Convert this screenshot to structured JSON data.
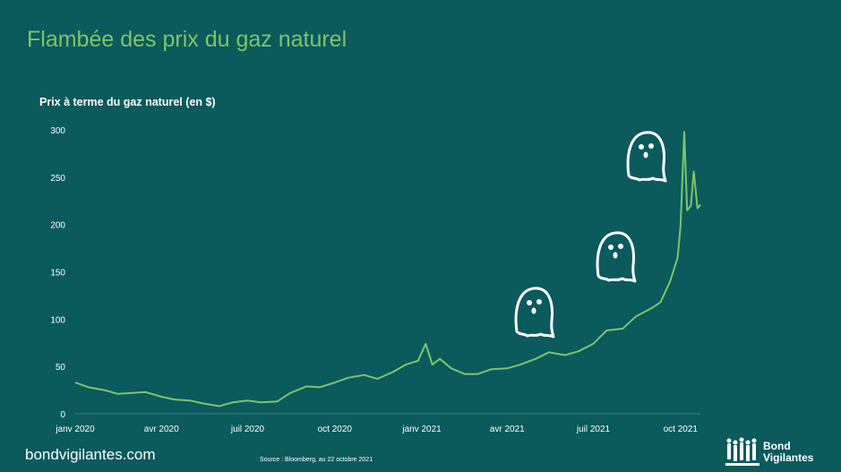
{
  "title": "Flambée des prix du gaz naturel",
  "footer": {
    "site": "bondvigilantes.com",
    "source": "Source : Bloomberg, au 22 octobre 2021",
    "brand_line1": "Bond",
    "brand_line2": "Vigilantes"
  },
  "colors": {
    "background": "#0b5a5c",
    "accent": "#7fc46a",
    "text": "#ffffff"
  },
  "icons": [
    "ghost-icon",
    "ghost-icon",
    "ghost-icon",
    "bond-vigilantes-logo-icon"
  ],
  "chart_data": {
    "type": "line",
    "ylabel": "Prix à terme du gaz naturel (en $)",
    "xlabel": "",
    "ylim": [
      0,
      300
    ],
    "yticks": [
      0,
      50,
      100,
      150,
      200,
      250,
      300
    ],
    "xlim": [
      "2020-01-01",
      "2021-10-22"
    ],
    "xticks": [
      {
        "date": "2020-01-01",
        "label": "janv 2020"
      },
      {
        "date": "2020-04-01",
        "label": "avr 2020"
      },
      {
        "date": "2020-07-01",
        "label": "juil 2020"
      },
      {
        "date": "2020-10-01",
        "label": "oct 2020"
      },
      {
        "date": "2021-01-01",
        "label": "janv 2021"
      },
      {
        "date": "2021-04-01",
        "label": "avr 2021"
      },
      {
        "date": "2021-07-01",
        "label": "juil 2021"
      },
      {
        "date": "2021-10-01",
        "label": "oct 2021"
      }
    ],
    "grid": false,
    "series": [
      {
        "x": [
          "2020-01-01",
          "2020-01-15",
          "2020-02-01",
          "2020-02-15",
          "2020-03-01",
          "2020-03-15",
          "2020-04-01",
          "2020-04-15",
          "2020-05-01",
          "2020-05-15",
          "2020-06-01",
          "2020-06-15",
          "2020-07-01",
          "2020-07-15",
          "2020-08-01",
          "2020-08-15",
          "2020-09-01",
          "2020-09-15",
          "2020-10-01",
          "2020-10-15",
          "2020-11-01",
          "2020-11-15",
          "2020-12-01",
          "2020-12-15",
          "2020-12-28",
          "2021-01-05",
          "2021-01-12",
          "2021-01-20",
          "2021-02-01",
          "2021-02-15",
          "2021-03-01",
          "2021-03-15",
          "2021-04-01",
          "2021-04-15",
          "2021-05-01",
          "2021-05-15",
          "2021-06-01",
          "2021-06-15",
          "2021-07-01",
          "2021-07-15",
          "2021-08-01",
          "2021-08-15",
          "2021-09-01",
          "2021-09-10",
          "2021-09-20",
          "2021-09-28",
          "2021-10-01",
          "2021-10-05",
          "2021-10-08",
          "2021-10-12",
          "2021-10-15",
          "2021-10-19",
          "2021-10-22"
        ],
        "y": [
          33,
          28,
          25,
          21,
          22,
          23,
          18,
          15,
          14,
          11,
          8,
          12,
          14,
          12,
          13,
          22,
          29,
          28,
          33,
          38,
          41,
          37,
          44,
          52,
          56,
          74,
          52,
          58,
          48,
          42,
          42,
          47,
          48,
          52,
          58,
          65,
          62,
          66,
          74,
          88,
          90,
          103,
          112,
          118,
          140,
          165,
          198,
          298,
          215,
          220,
          256,
          217,
          221
        ]
      }
    ]
  }
}
